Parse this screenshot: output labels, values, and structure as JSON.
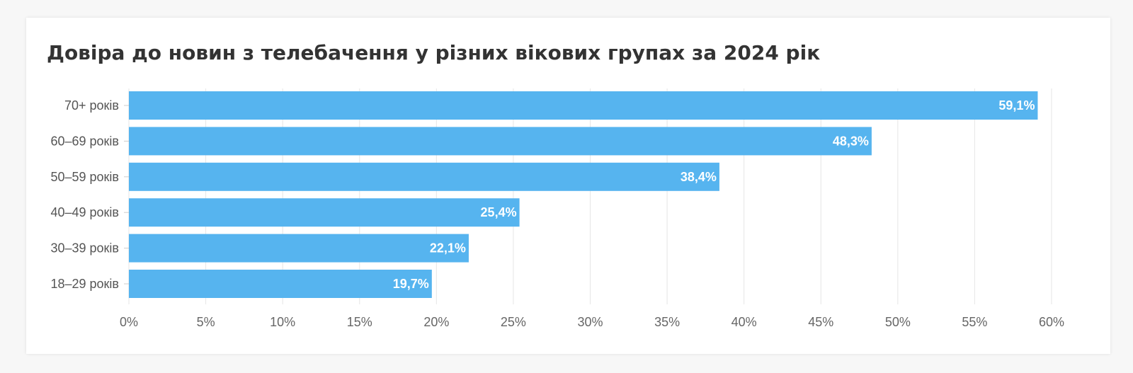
{
  "chart_data": {
    "type": "bar",
    "orientation": "horizontal",
    "title": "Довіра до новин з телебачення у різних вікових групах за 2024 рік",
    "categories": [
      "70+ років",
      "60–69 років",
      "50–59 років",
      "40–49 років",
      "30–39 років",
      "18–29 років"
    ],
    "values": [
      59.1,
      48.3,
      38.4,
      25.4,
      22.1,
      19.7
    ],
    "value_labels": [
      "59,1%",
      "48,3%",
      "38,4%",
      "25,4%",
      "22,1%",
      "19,7%"
    ],
    "xlim": [
      0,
      60
    ],
    "xticks": [
      0,
      5,
      10,
      15,
      20,
      25,
      30,
      35,
      40,
      45,
      50,
      55,
      60
    ],
    "xtick_labels": [
      "0%",
      "5%",
      "10%",
      "15%",
      "20%",
      "25%",
      "30%",
      "35%",
      "40%",
      "45%",
      "50%",
      "55%",
      "60%"
    ],
    "xlabel": "",
    "ylabel": "",
    "grid": true,
    "legend": "none",
    "bar_color": "#56b4ef"
  }
}
